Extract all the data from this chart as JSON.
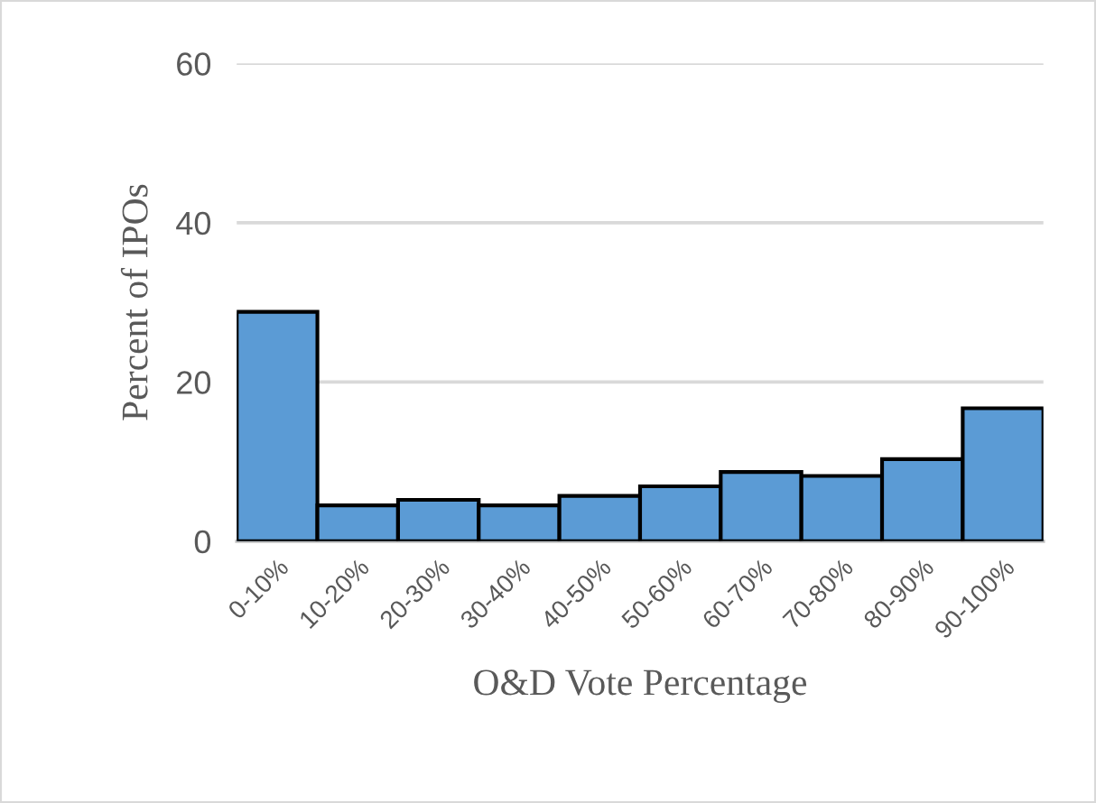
{
  "chart_data": {
    "type": "bar",
    "xlabel": "O&D Vote Percentage",
    "ylabel": "Percent of IPOs",
    "categories": [
      "0-10%",
      "10-20%",
      "20-30%",
      "30-40%",
      "40-50%",
      "50-60%",
      "60-70%",
      "70-80%",
      "80-90%",
      "90-100%"
    ],
    "values": [
      28.8,
      4.5,
      5.2,
      4.5,
      5.7,
      6.9,
      8.7,
      8.2,
      10.3,
      16.7
    ],
    "color": "#5b9bd5",
    "ylim": [
      0,
      60
    ],
    "yticks": [
      0,
      20,
      40,
      60
    ],
    "grid": "y",
    "legend": false
  }
}
